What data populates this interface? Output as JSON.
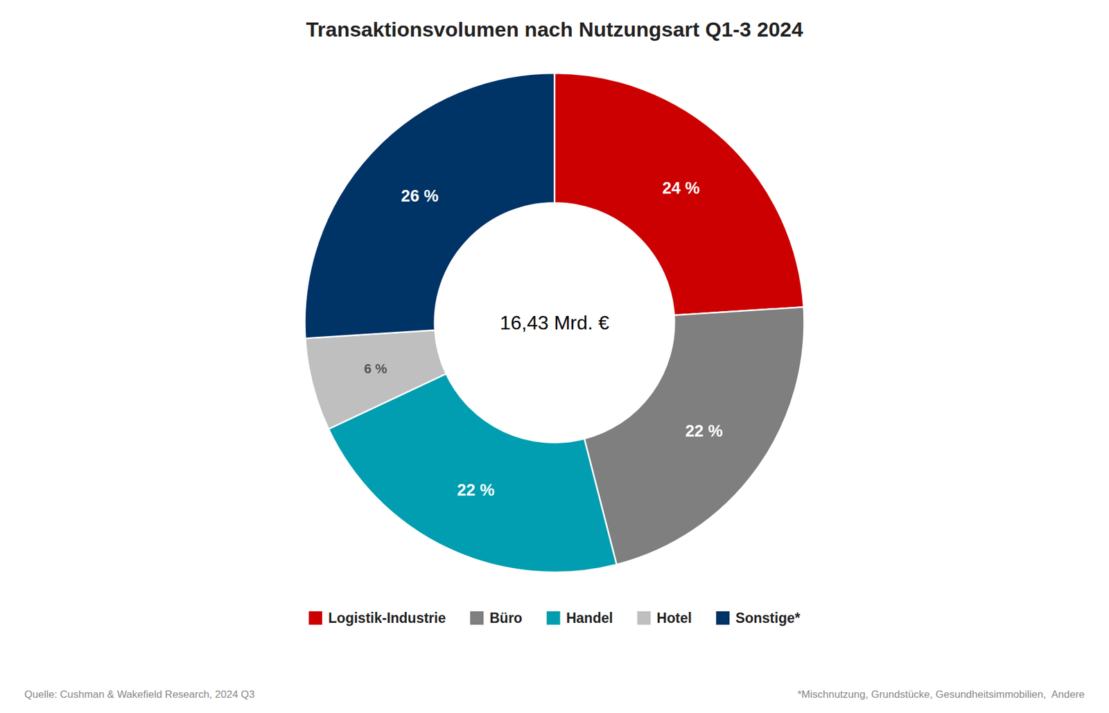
{
  "chart_data": {
    "type": "pie",
    "title": "Transaktionsvolumen nach Nutzungsart Q1-3 2024",
    "categories": [
      "Logistik-Industrie",
      "Büro",
      "Handel",
      "Hotel",
      "Sonstige*"
    ],
    "values": [
      24,
      22,
      22,
      6,
      26
    ],
    "value_labels": [
      "24 %",
      "22 %",
      "22 %",
      "6 %",
      "26 %"
    ],
    "colors": [
      "#CC0000",
      "#7F7F7F",
      "#009EB0",
      "#BFBFBF",
      "#003366"
    ],
    "data_labels": true,
    "legend": "bottom",
    "annotations": [
      "16,43 Mrd. €",
      "Quelle: Cushman & Wakefield Research, 2024 Q3",
      "*Mischnutzung, Grundstücke, Gesundheitsimmobilien,  Andere"
    ]
  }
}
